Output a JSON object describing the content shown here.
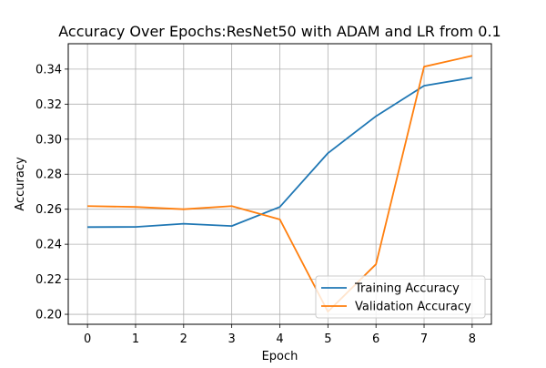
{
  "chart_data": {
    "type": "line",
    "title": "Accuracy Over Epochs:ResNet50 with ADAM and LR from 0.1",
    "xlabel": "Epoch",
    "ylabel": "Accuracy",
    "x": [
      0,
      1,
      2,
      3,
      4,
      5,
      6,
      7,
      8
    ],
    "xlim": [
      -0.4,
      8.4
    ],
    "ylim": [
      0.1943,
      0.3545
    ],
    "xticks": [
      "0",
      "1",
      "2",
      "3",
      "4",
      "5",
      "6",
      "7",
      "8"
    ],
    "yticks": [
      "0.20",
      "0.22",
      "0.24",
      "0.26",
      "0.28",
      "0.30",
      "0.32",
      "0.34"
    ],
    "grid": true,
    "legend_position": "bottom-right",
    "series": [
      {
        "name": "Training Accuracy",
        "color": "#1f77b4",
        "values": [
          0.2498,
          0.2499,
          0.2517,
          0.2504,
          0.2613,
          0.292,
          0.3131,
          0.3305,
          0.3351
        ]
      },
      {
        "name": "Validation Accuracy",
        "color": "#ff7f0e",
        "values": [
          0.2618,
          0.2613,
          0.26,
          0.2618,
          0.2542,
          0.2015,
          0.2286,
          0.3414,
          0.3476
        ]
      }
    ]
  }
}
